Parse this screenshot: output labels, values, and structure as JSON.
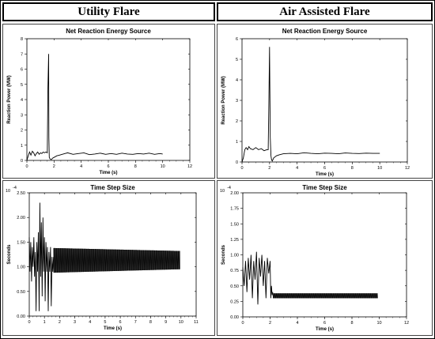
{
  "headers": {
    "left": "Utility Flare",
    "right": "Air Assisted Flare"
  },
  "chart_data": [
    {
      "id": "ul",
      "type": "line",
      "title": "Net Reaction Energy Source",
      "xlabel": "Time (s)",
      "ylabel": "Reaction Power (MW)",
      "xlim": [
        0,
        12
      ],
      "ylim": [
        0,
        8
      ],
      "xticks": [
        "0",
        "2",
        "4",
        "6",
        "8",
        "10",
        "12"
      ],
      "yticks": [
        "0",
        "1",
        "2",
        "3",
        "4",
        "5",
        "6",
        "7",
        "8"
      ],
      "exponent_label": "",
      "series": [
        {
          "x": [
            0,
            0.1,
            0.2,
            0.3,
            0.4,
            0.5,
            0.6,
            0.7,
            0.8,
            0.9,
            1.0,
            1.1,
            1.2,
            1.3,
            1.4,
            1.5,
            1.55,
            1.6,
            1.62,
            1.65,
            1.7,
            1.8,
            1.9,
            2.0,
            2.2,
            2.4,
            2.6,
            2.8,
            3.0,
            3.4,
            3.8,
            4.2,
            4.6,
            5.0,
            5.4,
            5.8,
            6.2,
            6.6,
            7.0,
            7.4,
            7.8,
            8.2,
            8.6,
            9.0,
            9.4,
            9.8,
            10.0
          ],
          "y": [
            0,
            0.3,
            0.55,
            0.35,
            0.6,
            0.5,
            0.3,
            0.45,
            0.55,
            0.4,
            0.5,
            0.45,
            0.55,
            0.5,
            0.55,
            0.5,
            4.8,
            7.0,
            1.5,
            0.2,
            0.1,
            0.05,
            0.15,
            0.2,
            0.3,
            0.35,
            0.4,
            0.45,
            0.5,
            0.4,
            0.45,
            0.5,
            0.38,
            0.42,
            0.48,
            0.4,
            0.45,
            0.4,
            0.48,
            0.42,
            0.4,
            0.45,
            0.42,
            0.48,
            0.4,
            0.45,
            0.42
          ]
        }
      ]
    },
    {
      "id": "ur",
      "type": "line",
      "title": "Net Reaction Energy Source",
      "xlabel": "Time (s)",
      "ylabel": "Reaction Power (MW)",
      "xlim": [
        0,
        12
      ],
      "ylim": [
        0,
        6
      ],
      "xticks": [
        "0",
        "2",
        "4",
        "6",
        "8",
        "10",
        "12"
      ],
      "yticks": [
        "0",
        "1",
        "2",
        "3",
        "4",
        "5",
        "6"
      ],
      "exponent_label": "",
      "series": [
        {
          "x": [
            0,
            0.1,
            0.2,
            0.3,
            0.4,
            0.5,
            0.6,
            0.8,
            1.0,
            1.2,
            1.4,
            1.6,
            1.8,
            1.9,
            1.95,
            2.0,
            2.05,
            2.1,
            2.15,
            2.2,
            2.3,
            2.5,
            2.7,
            3.0,
            3.5,
            4.0,
            4.5,
            5.0,
            5.5,
            6.0,
            6.5,
            7.0,
            7.5,
            8.0,
            8.5,
            9.0,
            9.5,
            10.0
          ],
          "y": [
            0,
            0.2,
            0.6,
            0.7,
            0.6,
            0.75,
            0.65,
            0.6,
            0.7,
            0.6,
            0.65,
            0.55,
            0.6,
            0.6,
            3.0,
            5.6,
            1.2,
            0.3,
            0.1,
            0.05,
            0.2,
            0.3,
            0.35,
            0.4,
            0.42,
            0.4,
            0.45,
            0.42,
            0.4,
            0.43,
            0.42,
            0.4,
            0.44,
            0.42,
            0.41,
            0.43,
            0.42,
            0.42
          ]
        }
      ]
    },
    {
      "id": "ll",
      "type": "line",
      "title": "Time Step Size",
      "xlabel": "Time (s)",
      "ylabel": "Seconds",
      "xlim": [
        0,
        11
      ],
      "ylim": [
        0,
        2.5
      ],
      "xticks": [
        "0",
        "1",
        "2",
        "3",
        "4",
        "5",
        "6",
        "7",
        "8",
        "9",
        "10",
        "11"
      ],
      "yticks": [
        "0.00",
        "0.50",
        "1.00",
        "1.50",
        "2.00",
        "2.50"
      ],
      "exponent_label": "10",
      "exponent_power": "-4",
      "band": {
        "x": [
          1.6,
          9.95
        ],
        "lower": [
          0.88,
          0.95
        ],
        "upper": [
          1.38,
          1.32
        ]
      },
      "series": [
        {
          "x": [
            0,
            0.05,
            0.1,
            0.15,
            0.2,
            0.25,
            0.3,
            0.35,
            0.4,
            0.45,
            0.5,
            0.55,
            0.6,
            0.65,
            0.7,
            0.75,
            0.8,
            0.85,
            0.9,
            0.95,
            1.0,
            1.05,
            1.1,
            1.15,
            1.2,
            1.25,
            1.3,
            1.35,
            1.4,
            1.45,
            1.5,
            1.55,
            1.6
          ],
          "y": [
            1.6,
            0.9,
            1.5,
            0.7,
            1.4,
            1.0,
            1.6,
            0.8,
            1.3,
            0.1,
            1.5,
            0.9,
            1.7,
            0.1,
            2.3,
            0.8,
            1.9,
            0.4,
            2.0,
            0.9,
            1.6,
            0.3,
            1.5,
            0.9,
            1.4,
            0.1,
            1.3,
            0.9,
            1.4,
            0.2,
            1.2,
            0.9,
            1.2
          ]
        }
      ]
    },
    {
      "id": "lr",
      "type": "line",
      "title": "Time Step Size",
      "xlabel": "Time (s)",
      "ylabel": "Seconds",
      "xlim": [
        0,
        12
      ],
      "ylim": [
        0,
        2.0
      ],
      "xticks": [
        "0",
        "2",
        "4",
        "6",
        "8",
        "10",
        "12"
      ],
      "yticks": [
        "0.00",
        "0.25",
        "0.50",
        "0.75",
        "1.00",
        "1.25",
        "1.50",
        "1.75",
        "2.00"
      ],
      "exponent_label": "10",
      "exponent_power": "-4",
      "band": {
        "x": [
          2.2,
          9.9
        ],
        "lower": [
          0.3,
          0.3
        ],
        "upper": [
          0.38,
          0.38
        ]
      },
      "series": [
        {
          "x": [
            0,
            0.1,
            0.2,
            0.3,
            0.4,
            0.5,
            0.6,
            0.7,
            0.8,
            0.9,
            1.0,
            1.1,
            1.2,
            1.3,
            1.4,
            1.5,
            1.6,
            1.7,
            1.8,
            1.9,
            2.0,
            2.05,
            2.1,
            2.15,
            2.2
          ],
          "y": [
            0.8,
            0.5,
            0.9,
            0.4,
            0.95,
            0.6,
            1.0,
            0.3,
            0.9,
            0.6,
            1.05,
            0.2,
            0.95,
            0.65,
            1.0,
            0.5,
            0.9,
            0.3,
            0.95,
            0.7,
            0.9,
            0.3,
            0.5,
            0.35,
            0.4
          ]
        }
      ]
    }
  ]
}
